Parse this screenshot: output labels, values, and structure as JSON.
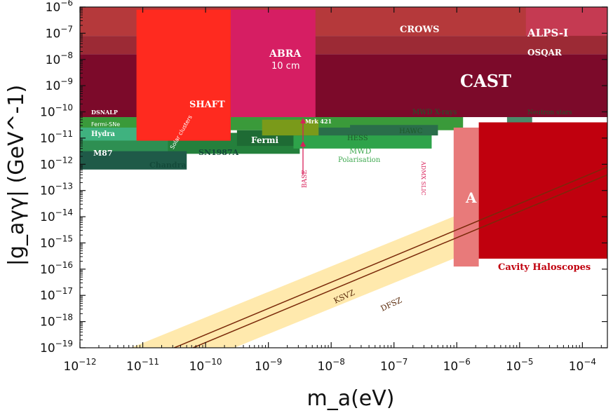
{
  "chart_data": {
    "type": "area",
    "title": "",
    "xlabel": "m_a(eV)",
    "ylabel": "|g_aγγ| (GeV^-1)",
    "x_scale": "log",
    "y_scale": "log",
    "xlim": [
      1e-12,
      0.00025
    ],
    "ylim": [
      1e-19,
      1e-06
    ],
    "grid": false,
    "x_ticks": [
      {
        "base": "10",
        "exp": "−12"
      },
      {
        "base": "10",
        "exp": "−11"
      },
      {
        "base": "10",
        "exp": "−10"
      },
      {
        "base": "10",
        "exp": "−9"
      },
      {
        "base": "10",
        "exp": "−8"
      },
      {
        "base": "10",
        "exp": "−7"
      },
      {
        "base": "10",
        "exp": "−6"
      },
      {
        "base": "10",
        "exp": "−5"
      },
      {
        "base": "10",
        "exp": "−4"
      }
    ],
    "y_ticks": [
      {
        "base": "10",
        "exp": "−6"
      },
      {
        "base": "10",
        "exp": "−7"
      },
      {
        "base": "10",
        "exp": "−8"
      },
      {
        "base": "10",
        "exp": "−9"
      },
      {
        "base": "10",
        "exp": "−10"
      },
      {
        "base": "10",
        "exp": "−11"
      },
      {
        "base": "10",
        "exp": "−12"
      },
      {
        "base": "10",
        "exp": "−13"
      },
      {
        "base": "10",
        "exp": "−14"
      },
      {
        "base": "10",
        "exp": "−15"
      },
      {
        "base": "10",
        "exp": "−16"
      },
      {
        "base": "10",
        "exp": "−17"
      },
      {
        "base": "10",
        "exp": "−18"
      },
      {
        "base": "10",
        "exp": "−19"
      }
    ],
    "x_tick_values": [
      -12,
      -11,
      -10,
      -9,
      -8,
      -7,
      -6,
      -5,
      -4
    ],
    "y_tick_values": [
      -6,
      -7,
      -8,
      -9,
      -10,
      -11,
      -12,
      -13,
      -14,
      -15,
      -16,
      -17,
      -18,
      -19
    ],
    "regions": [
      {
        "name": "CROWS",
        "label": "CROWS",
        "color": "#b5393b",
        "log_m": [
          -12,
          -4.4
        ],
        "log_g_min": -7.1,
        "log_g_max": -6
      },
      {
        "name": "ALPS-I",
        "label": "ALPS-I",
        "color": "#c53a52",
        "log_m": [
          -4.9,
          -3.6
        ],
        "log_g_min": -7.2,
        "log_g_max": -6
      },
      {
        "name": "OSQAR",
        "label": "OSQAR",
        "color": "#9c2a35",
        "log_m": [
          -12,
          -3.6
        ],
        "log_g_min": -7.8,
        "log_g_max": -7.1
      },
      {
        "name": "CAST",
        "label": "CAST",
        "color": "#7c0a2a",
        "log_m": [
          -12,
          -3.6
        ],
        "log_g_min": -10.2,
        "log_g_max": -7.8
      },
      {
        "name": "SHAFT",
        "label": "SHAFT",
        "color": "#ff2a1f",
        "log_m": [
          -11.1,
          -9.6
        ],
        "log_g_min": -11.1,
        "log_g_max": -6.1
      },
      {
        "name": "ABRA 10cm",
        "label": "ABRA",
        "sublabel": "10 cm",
        "color": "#d61e63",
        "log_m": [
          -9.6,
          -8.25
        ],
        "log_g_min": -10.2,
        "log_g_max": -6.1
      },
      {
        "name": "Fermi-SNe",
        "label": "Fermi-SNe",
        "color": "#3aa860",
        "log_m": [
          -12,
          -9.8
        ],
        "log_g_min": -10.7,
        "log_g_max": -10.3
      },
      {
        "name": "Hydra",
        "label": "Hydra",
        "color": "#3fb27f",
        "log_m": [
          -12,
          -10.6
        ],
        "log_g_min": -11.1,
        "log_g_max": -10.6
      },
      {
        "name": "M87",
        "label": "M87",
        "color": "#2e8f52",
        "log_m": [
          -12,
          -10.6
        ],
        "log_g_min": -11.8,
        "log_g_max": -11.1
      },
      {
        "name": "Chandra",
        "label": "Chandra",
        "color": "#1f5a48",
        "log_m": [
          -12,
          -10.3
        ],
        "log_g_min": -12.2,
        "log_g_max": -11.5
      },
      {
        "name": "SN1987A",
        "label": "SN1987A",
        "color": "#24803c",
        "log_m": [
          -12,
          -8.5
        ],
        "log_g_min": -11.6,
        "log_g_max": -10.8
      },
      {
        "name": "Fermi",
        "label": "Fermi",
        "color": "#1e6b34",
        "log_m": [
          -9.5,
          -8.6
        ],
        "log_g_min": -11.3,
        "log_g_max": -10.7
      },
      {
        "name": "MWD X-rays",
        "label": "MWD X-rays",
        "color": "#3a9a3a",
        "log_m": [
          -12,
          -5.9
        ],
        "log_g_min": -10.7,
        "log_g_max": -10.2
      },
      {
        "name": "MWD Polarisation",
        "label": "MWD",
        "sublabel": "Polarisation",
        "color": "#2ea34a",
        "log_m": [
          -8.6,
          -6.4
        ],
        "log_g_min": -11.4,
        "log_g_max": -10.7
      },
      {
        "name": "HESS",
        "label": "HESS",
        "color": "#2a6e4a",
        "log_m": [
          -8.6,
          -7.6
        ],
        "log_g_min": -10.9,
        "log_g_max": -10.6
      },
      {
        "name": "HAWC",
        "label": "HAWC",
        "color": "#2a6e4a",
        "log_m": [
          -7.7,
          -6.3
        ],
        "log_g_min": -10.9,
        "log_g_max": -10.5
      },
      {
        "name": "Mrk 421",
        "label": "Mrk 421",
        "color": "#7a9a1a",
        "log_m": [
          -9.1,
          -8.2
        ],
        "log_g_min": -10.9,
        "log_g_max": -10.3
      },
      {
        "name": "Neutron stars",
        "label": "Neutron stars",
        "color": "#4a8a6a",
        "log_m": [
          -5.2,
          -4.8
        ],
        "log_g_min": -11.0,
        "log_g_max": -10.2
      },
      {
        "name": "A",
        "label": "A",
        "color": "#e87a7a",
        "log_m": [
          -6.05,
          -5.65
        ],
        "log_g_min": -15.9,
        "log_g_max": -10.6
      },
      {
        "name": "Cavity Haloscopes",
        "label": "Cavity Haloscopes",
        "color": "#c0000e",
        "log_m": [
          -5.65,
          -3.6
        ],
        "log_g_min": -15.6,
        "log_g_max": -10.4
      }
    ],
    "lines": [
      {
        "name": "KSVZ",
        "label": "KSVZ",
        "color": "#7a2a0a",
        "log_g_at_log_m": [
          [
            -10.5,
            -19.0
          ],
          [
            -3.6,
            -12.1
          ]
        ]
      },
      {
        "name": "DFSZ",
        "label": "DFSZ",
        "color": "#7a2a0a",
        "log_g_at_log_m": [
          [
            -10.2,
            -19.0
          ],
          [
            -3.6,
            -12.4
          ]
        ]
      }
    ],
    "annotations": [
      {
        "text": "DSNALP",
        "log_m": -11.6,
        "log_g": -10.0
      },
      {
        "text": "Solar clusters",
        "log_m": -10.8,
        "log_g": -11.15
      },
      {
        "text": "BASE",
        "log_m": -8.5,
        "log_g": -12.2
      },
      {
        "text": "ADMX SLIC",
        "log_m": -6.8,
        "log_g": -12.6
      },
      {
        "text": "Mrk 421",
        "log_m": -8.7,
        "log_g": -10.4
      }
    ]
  }
}
